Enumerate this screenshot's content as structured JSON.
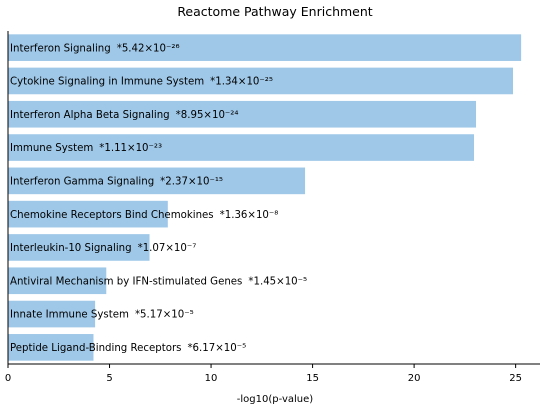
{
  "chart_data": {
    "type": "bar",
    "orientation": "horizontal",
    "title": "Reactome Pathway Enrichment",
    "xlabel": "-log10(p-value)",
    "ylabel": "",
    "xlim": [
      0,
      26.2
    ],
    "xticks": [
      0,
      5,
      10,
      15,
      20,
      25
    ],
    "grid": false,
    "bar_color": "#9fc8e8",
    "categories": [
      "Interferon Signaling",
      "Cytokine Signaling in Immune System",
      "Interferon Alpha Beta Signaling",
      "Immune System",
      "Interferon Gamma Signaling",
      "Chemokine Receptors Bind Chemokines",
      "Interleukin-10 Signaling",
      "Antiviral Mechanism by IFN-stimulated Genes",
      "Innate Immune System",
      "Peptide Ligand-Binding Receptors"
    ],
    "pvalue_labels": [
      "*5.42×10⁻²⁶",
      "*1.34×10⁻²⁵",
      "*8.95×10⁻²⁴",
      "*1.11×10⁻²³",
      "*2.37×10⁻¹⁵",
      "*1.36×10⁻⁸",
      "*1.07×10⁻⁷",
      "*1.45×10⁻⁵",
      "*5.17×10⁻⁵",
      "*6.17×10⁻⁵"
    ],
    "values": [
      25.27,
      24.87,
      23.05,
      22.95,
      14.63,
      7.87,
      6.97,
      4.84,
      4.29,
      4.21
    ]
  }
}
